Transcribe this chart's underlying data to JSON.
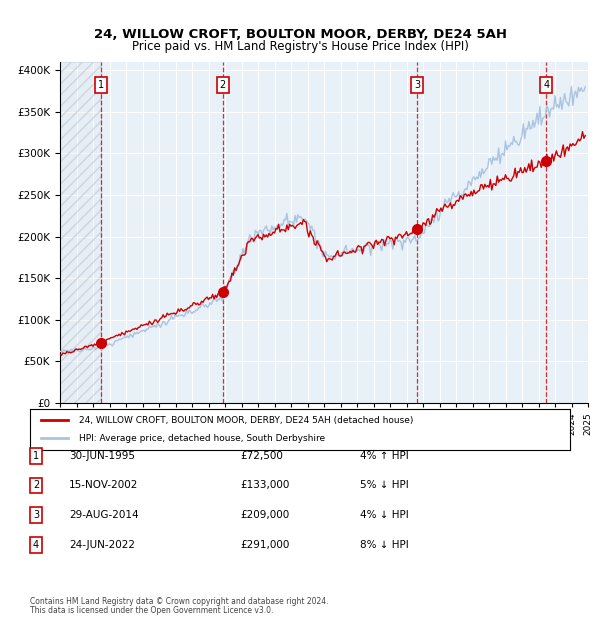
{
  "title": "24, WILLOW CROFT, BOULTON MOOR, DERBY, DE24 5AH",
  "subtitle": "Price paid vs. HM Land Registry's House Price Index (HPI)",
  "legend_line1": "24, WILLOW CROFT, BOULTON MOOR, DERBY, DE24 5AH (detached house)",
  "legend_line2": "HPI: Average price, detached house, South Derbyshire",
  "footer1": "Contains HM Land Registry data © Crown copyright and database right 2024.",
  "footer2": "This data is licensed under the Open Government Licence v3.0.",
  "transactions": [
    {
      "label": "1",
      "date": "1995-06-30",
      "price": 72500,
      "pct": "4%",
      "dir": "↑"
    },
    {
      "label": "2",
      "date": "2002-11-15",
      "price": 133000,
      "pct": "5%",
      "dir": "↓"
    },
    {
      "label": "3",
      "date": "2014-08-29",
      "price": 209000,
      "pct": "4%",
      "dir": "↓"
    },
    {
      "label": "4",
      "date": "2022-06-24",
      "price": 291000,
      "pct": "8%",
      "dir": "↓"
    }
  ],
  "table_rows": [
    {
      "label": "1",
      "date": "30-JUN-1995",
      "price": "£72,500",
      "info": "4% ↑ HPI"
    },
    {
      "label": "2",
      "date": "15-NOV-2002",
      "price": "£133,000",
      "info": "5% ↓ HPI"
    },
    {
      "label": "3",
      "date": "29-AUG-2014",
      "price": "£209,000",
      "info": "4% ↓ HPI"
    },
    {
      "label": "4",
      "date": "24-JUN-2022",
      "price": "£291,000",
      "info": "8% ↓ HPI"
    }
  ],
  "hpi_color": "#aac4e0",
  "price_color": "#cc0000",
  "dot_color": "#cc0000",
  "vline_color": "#cc0000",
  "hatched_color": "#e0e8f0",
  "bg_color": "#dce8f5",
  "plot_bg": "#e8f0f8",
  "grid_color": "#ffffff",
  "ylim": [
    0,
    410000
  ],
  "yticks": [
    0,
    50000,
    100000,
    150000,
    200000,
    250000,
    300000,
    350000,
    400000
  ],
  "xstart_year": 1993,
  "xend_year": 2025
}
